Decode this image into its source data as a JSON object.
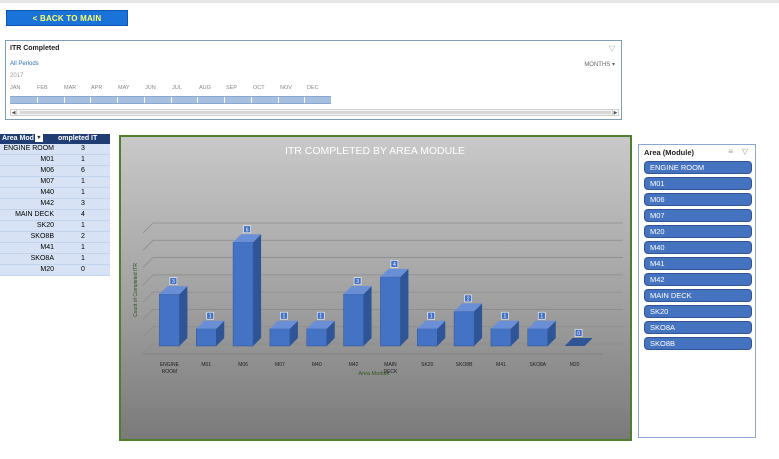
{
  "back_button": {
    "label": "< BACK TO MAIN"
  },
  "timeline": {
    "title": "ITR Completed",
    "periods_label": "All Periods",
    "months_dropdown": "MONTHS",
    "year": "2017",
    "months": [
      "JAN",
      "FEB",
      "MAR",
      "APR",
      "MAY",
      "JUN",
      "JUL",
      "AUG",
      "SEP",
      "OCT",
      "NOV",
      "DEC"
    ]
  },
  "pivot": {
    "headers": [
      "Area Mod",
      "ompleted IT"
    ],
    "rows": [
      {
        "label": "ENGINE ROOM",
        "value": "3"
      },
      {
        "label": "M01",
        "value": "1"
      },
      {
        "label": "M06",
        "value": "6"
      },
      {
        "label": "M07",
        "value": "1"
      },
      {
        "label": "M40",
        "value": "1"
      },
      {
        "label": "M42",
        "value": "3"
      },
      {
        "label": "MAIN DECK",
        "value": "4"
      },
      {
        "label": "SK20",
        "value": "1"
      },
      {
        "label": "SKO8B",
        "value": "2"
      },
      {
        "label": "M41",
        "value": "1"
      },
      {
        "label": "SKO8A",
        "value": "1"
      },
      {
        "label": "M20",
        "value": "0"
      }
    ]
  },
  "chart_data": {
    "type": "bar",
    "title": "ITR COMPLETED BY AREA MODULE",
    "xlabel": "Area Module",
    "ylabel": "Count of Completed ITR",
    "categories": [
      "ENGINE ROOM",
      "M01",
      "M06",
      "M07",
      "M40",
      "M42",
      "MAIN DECK",
      "SK20",
      "SKO8B",
      "M41",
      "SKO8A",
      "M20"
    ],
    "values": [
      3,
      1,
      6,
      1,
      1,
      3,
      4,
      1,
      2,
      1,
      1,
      0
    ],
    "ylim": [
      0,
      7
    ],
    "grid": true,
    "bar_color": "#4472c4"
  },
  "slicer": {
    "title": "Area (Module)",
    "items": [
      "ENGINE ROOM",
      "M01",
      "M06",
      "M07",
      "M20",
      "M40",
      "M41",
      "M42",
      "MAIN DECK",
      "SK20",
      "SKO8A",
      "SKO8B"
    ]
  }
}
